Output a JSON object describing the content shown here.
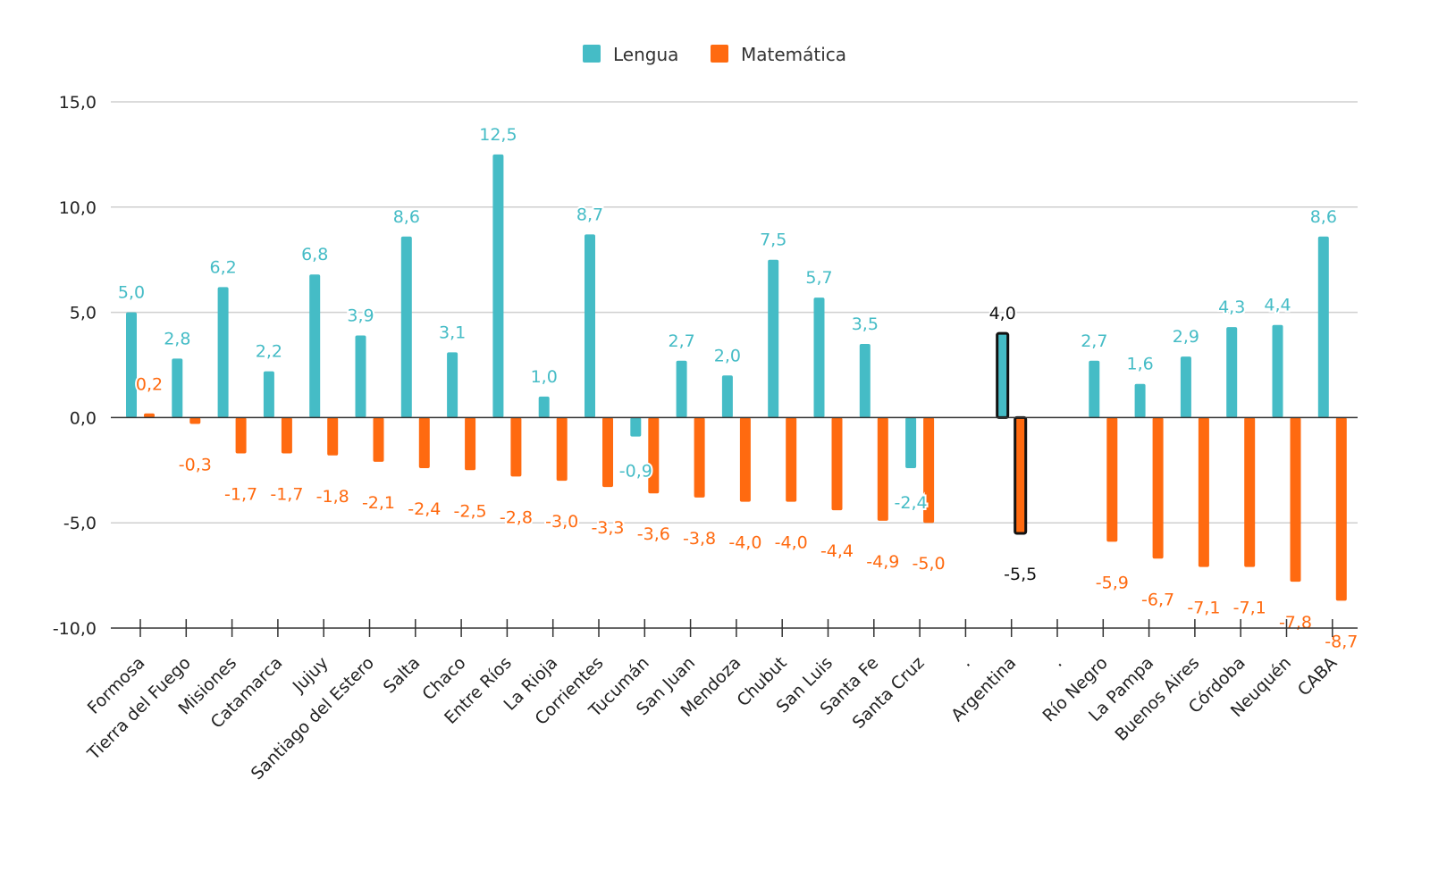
{
  "colors": {
    "lengua": "#45bcc6",
    "matematica": "#ff6a10",
    "highlight_label": "#111111",
    "axis": "#333333",
    "grid": "#cfcfcf"
  },
  "legend": {
    "lengua": "Lengua",
    "matematica": "Matemática"
  },
  "chart_data": {
    "type": "bar",
    "title": "",
    "xlabel": "",
    "ylabel": "",
    "ylim": [
      -10,
      15
    ],
    "yticks": [
      "15,0",
      "10,0",
      "5,0",
      "0,0",
      "-5,0",
      "-10,0"
    ],
    "ytick_values": [
      15,
      10,
      5,
      0,
      -5,
      -10
    ],
    "grid": true,
    "legend_position": "top-center",
    "highlighted_category": "Argentina",
    "categories": [
      "Formosa",
      "Tierra del Fuego",
      "Misiones",
      "Catamarca",
      "Jujuy",
      "Santiago del Estero",
      "Salta",
      "Chaco",
      "Entre Ríos",
      "La Rioja",
      "Corrientes",
      "Tucumán",
      "San Juan",
      "Mendoza",
      "Chubut",
      "San Luis",
      "Santa Fe",
      "Santa Cruz",
      ".",
      "Argentina",
      ".",
      "Río Negro",
      "La Pampa",
      "Buenos Aires",
      "Córdoba",
      "Neuquén",
      "CABA"
    ],
    "series": [
      {
        "name": "Lengua",
        "values": [
          5.0,
          2.8,
          6.2,
          2.2,
          6.8,
          3.9,
          8.6,
          3.1,
          12.5,
          1.0,
          8.7,
          -0.9,
          2.7,
          2.0,
          7.5,
          5.7,
          3.5,
          -2.4,
          null,
          4.0,
          null,
          2.7,
          1.6,
          2.9,
          4.3,
          4.4,
          8.6
        ],
        "labels": [
          "5,0",
          "2,8",
          "6,2",
          "2,2",
          "6,8",
          "3,9",
          "8,6",
          "3,1",
          "12,5",
          "1,0",
          "8,7",
          "-0,9",
          "2,7",
          "2,0",
          "7,5",
          "5,7",
          "3,5",
          "-2,4",
          "",
          "4,0",
          "",
          "2,7",
          "1,6",
          "2,9",
          "4,3",
          "4,4",
          "8,6"
        ]
      },
      {
        "name": "Matemática",
        "values": [
          0.2,
          -0.3,
          -1.7,
          -1.7,
          -1.8,
          -2.1,
          -2.4,
          -2.5,
          -2.8,
          -3.0,
          -3.3,
          -3.6,
          -3.8,
          -4.0,
          -4.0,
          -4.4,
          -4.9,
          -5.0,
          null,
          -5.5,
          null,
          -5.9,
          -6.7,
          -7.1,
          -7.1,
          -7.8,
          -8.7
        ],
        "labels": [
          "0,2",
          "-0,3",
          "-1,7",
          "-1,7",
          "-1,8",
          "-2,1",
          "-2,4",
          "-2,5",
          "-2,8",
          "-3,0",
          "-3,3",
          "-3,6",
          "-3,8",
          "-4,0",
          "-4,0",
          "-4,4",
          "-4,9",
          "-5,0",
          "",
          "-5,5",
          "",
          "-5,9",
          "-6,7",
          "-7,1",
          "-7,1",
          "-7,8",
          "-8,7"
        ]
      }
    ]
  }
}
